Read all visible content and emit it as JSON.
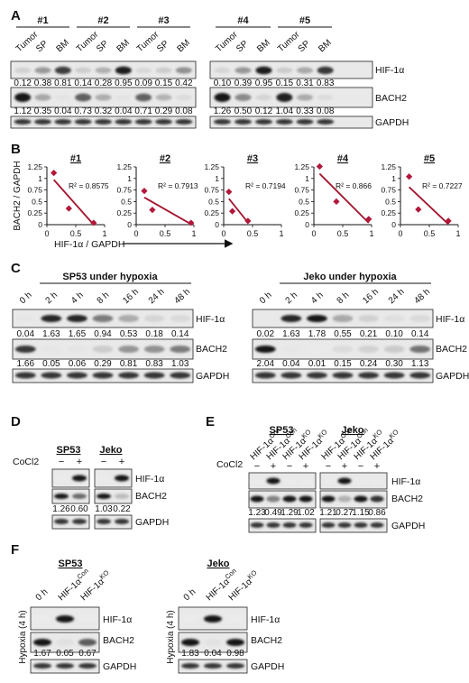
{
  "figure": {
    "panels": {
      "A": "A",
      "B": "B",
      "C": "C",
      "D": "D",
      "E": "E",
      "F": "F"
    },
    "panel_a": {
      "groups": [
        {
          "name": "#1",
          "samples": [
            "Tumor",
            "SP",
            "BM"
          ],
          "hif": [
            "0.12",
            "0.38",
            "0.81"
          ],
          "bach2": [
            "1.12",
            "0.35",
            "0.04"
          ]
        },
        {
          "name": "#2",
          "samples": [
            "Tumor",
            "SP",
            "BM"
          ],
          "hif": [
            "0.14",
            "0.28",
            "0.95"
          ],
          "bach2": [
            "0.73",
            "0.32",
            "0.04"
          ]
        },
        {
          "name": "#3",
          "samples": [
            "Tumor",
            "SP",
            "BM"
          ],
          "hif": [
            "0.09",
            "0.15",
            "0.42"
          ],
          "bach2": [
            "0.71",
            "0.29",
            "0.08"
          ]
        },
        {
          "name": "#4",
          "samples": [
            "Tumor",
            "SP",
            "BM"
          ],
          "hif": [
            "0.10",
            "0.39",
            "0.95"
          ],
          "bach2": [
            "1.26",
            "0.50",
            "0.12"
          ]
        },
        {
          "name": "#5",
          "samples": [
            "Tumor",
            "SP",
            "BM"
          ],
          "hif": [
            "0.15",
            "0.31",
            "0.83"
          ],
          "bach2": [
            "1.04",
            "0.33",
            "0.08"
          ]
        }
      ],
      "labels": {
        "hif": "HIF-1α",
        "bach2": "BACH2",
        "gapdh": "GAPDH"
      }
    },
    "panel_c": {
      "left": {
        "title": "SP53 under hypoxia",
        "times": [
          "0 h",
          "2 h",
          "4 h",
          "8 h",
          "16 h",
          "24 h",
          "48 h"
        ],
        "hif": [
          "0.04",
          "1.63",
          "1.65",
          "0.94",
          "0.53",
          "0.18",
          "0.14"
        ],
        "bach2": [
          "1.66",
          "0.05",
          "0.06",
          "0.29",
          "0.81",
          "0.83",
          "1.03"
        ]
      },
      "right": {
        "title": "Jeko under hypoxia",
        "times": [
          "0 h",
          "2 h",
          "4 h",
          "8 h",
          "16 h",
          "24 h",
          "48 h"
        ],
        "hif": [
          "0.02",
          "1.63",
          "1.78",
          "0.55",
          "0.21",
          "0.10",
          "0.14"
        ],
        "bach2": [
          "2.04",
          "0.04",
          "0.01",
          "0.15",
          "0.24",
          "0.30",
          "1.13"
        ]
      },
      "labels": {
        "hif": "HIF-1α",
        "bach2": "BACH2",
        "gapdh": "GAPDH"
      }
    },
    "panel_d": {
      "treatment": "CoCl2",
      "signs": [
        "−",
        "+"
      ],
      "cells": [
        {
          "name": "SP53",
          "bach2": [
            "1.26",
            "0.60"
          ]
        },
        {
          "name": "Jeko",
          "bach2": [
            "1.03",
            "0.22"
          ]
        }
      ],
      "labels": {
        "hif": "HIF-1α",
        "bach2": "BACH2",
        "gapdh": "GAPDH"
      }
    },
    "panel_e": {
      "treatment": "CoCl2",
      "lanes": [
        "HIF-1αCon",
        "HIF-1αCon",
        "HIF-1αKO",
        "HIF-1αKO"
      ],
      "signs": [
        "−",
        "+",
        "−",
        "+"
      ],
      "cells": [
        {
          "name": "SP53",
          "bach2": [
            "1.23",
            "0.49",
            "1.29",
            "1.02"
          ]
        },
        {
          "name": "Jeko",
          "bach2": [
            "1.21",
            "0.27",
            "1.15",
            "0.86"
          ]
        }
      ],
      "labels": {
        "hif": "HIF-1α",
        "bach2": "BACH2",
        "gapdh": "GAPDH"
      }
    },
    "panel_f": {
      "side_label": "Hypoxia (4 h)",
      "lanes": [
        "0 h",
        "HIF-1αCon",
        "HIF-1αKO"
      ],
      "cells": [
        {
          "name": "SP53",
          "bach2": [
            "1.67",
            "0.05",
            "0.67"
          ]
        },
        {
          "name": "Jeko",
          "bach2": [
            "1.83",
            "0.04",
            "0.98"
          ]
        }
      ],
      "labels": {
        "hif": "HIF-1α",
        "bach2": "BACH2",
        "gapdh": "GAPDH"
      }
    },
    "colors": {
      "band": "#111111",
      "marker": "#b2183b",
      "line": "#a3142e"
    }
  },
  "chart_data": {
    "type": "scatter",
    "ylabel": "BACH2 / GAPDH",
    "xlabel": "HIF-1α / GAPDH",
    "xlim": [
      0,
      1
    ],
    "ylim": [
      0,
      1.25
    ],
    "xticks": [
      "0",
      "0.5",
      "1"
    ],
    "yticks": [
      "0",
      "0.25",
      "0.5",
      "0.75",
      "1",
      "1.25"
    ],
    "plots": [
      {
        "title": "#1",
        "r2": "R² = 0.8575",
        "x": [
          0.12,
          0.38,
          0.81
        ],
        "y": [
          1.12,
          0.35,
          0.04
        ]
      },
      {
        "title": "#2",
        "r2": "R² = 0.7913",
        "x": [
          0.14,
          0.28,
          0.95
        ],
        "y": [
          0.73,
          0.32,
          0.04
        ]
      },
      {
        "title": "#3",
        "r2": "R² = 0.7194",
        "x": [
          0.09,
          0.15,
          0.42
        ],
        "y": [
          0.71,
          0.29,
          0.08
        ]
      },
      {
        "title": "#4",
        "r2": "R² = 0.866",
        "x": [
          0.1,
          0.39,
          0.95
        ],
        "y": [
          1.26,
          0.5,
          0.12
        ]
      },
      {
        "title": "#5",
        "r2": "R² = 0.7227",
        "x": [
          0.15,
          0.31,
          0.83
        ],
        "y": [
          1.04,
          0.33,
          0.08
        ]
      }
    ]
  }
}
